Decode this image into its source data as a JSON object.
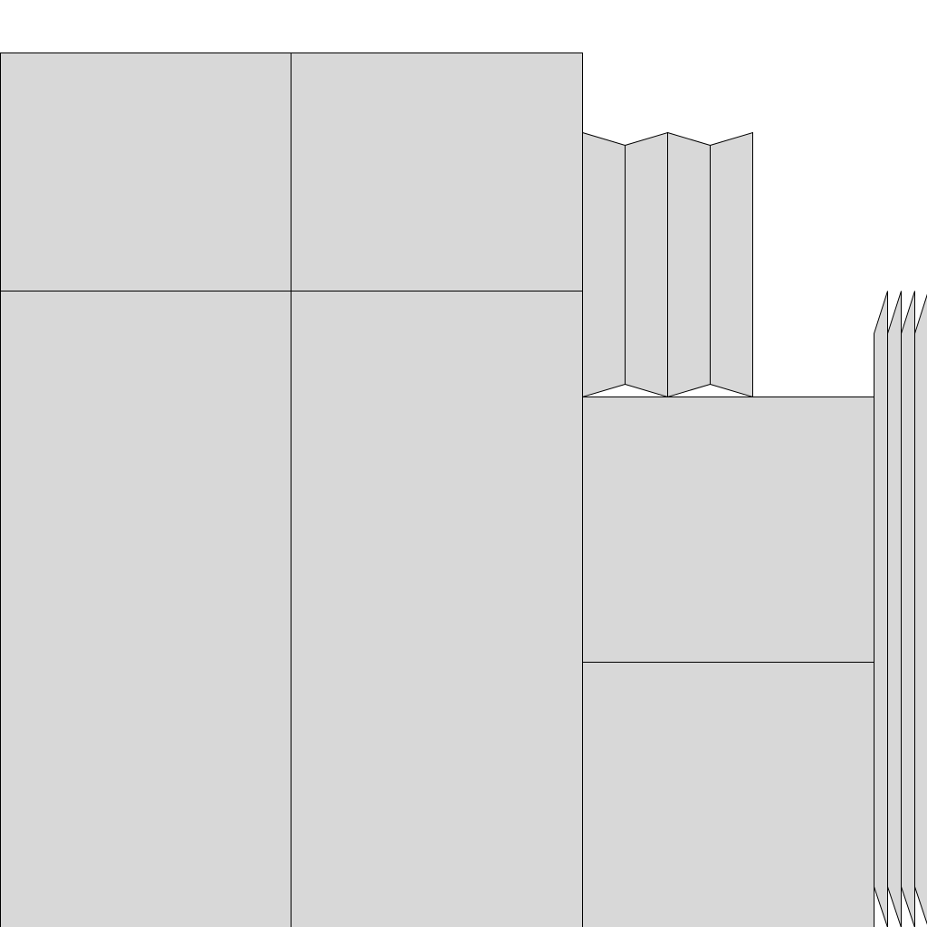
{
  "colors": {
    "background": "#ffffff",
    "fill": "#d8d8d8",
    "stroke": "#000000"
  }
}
